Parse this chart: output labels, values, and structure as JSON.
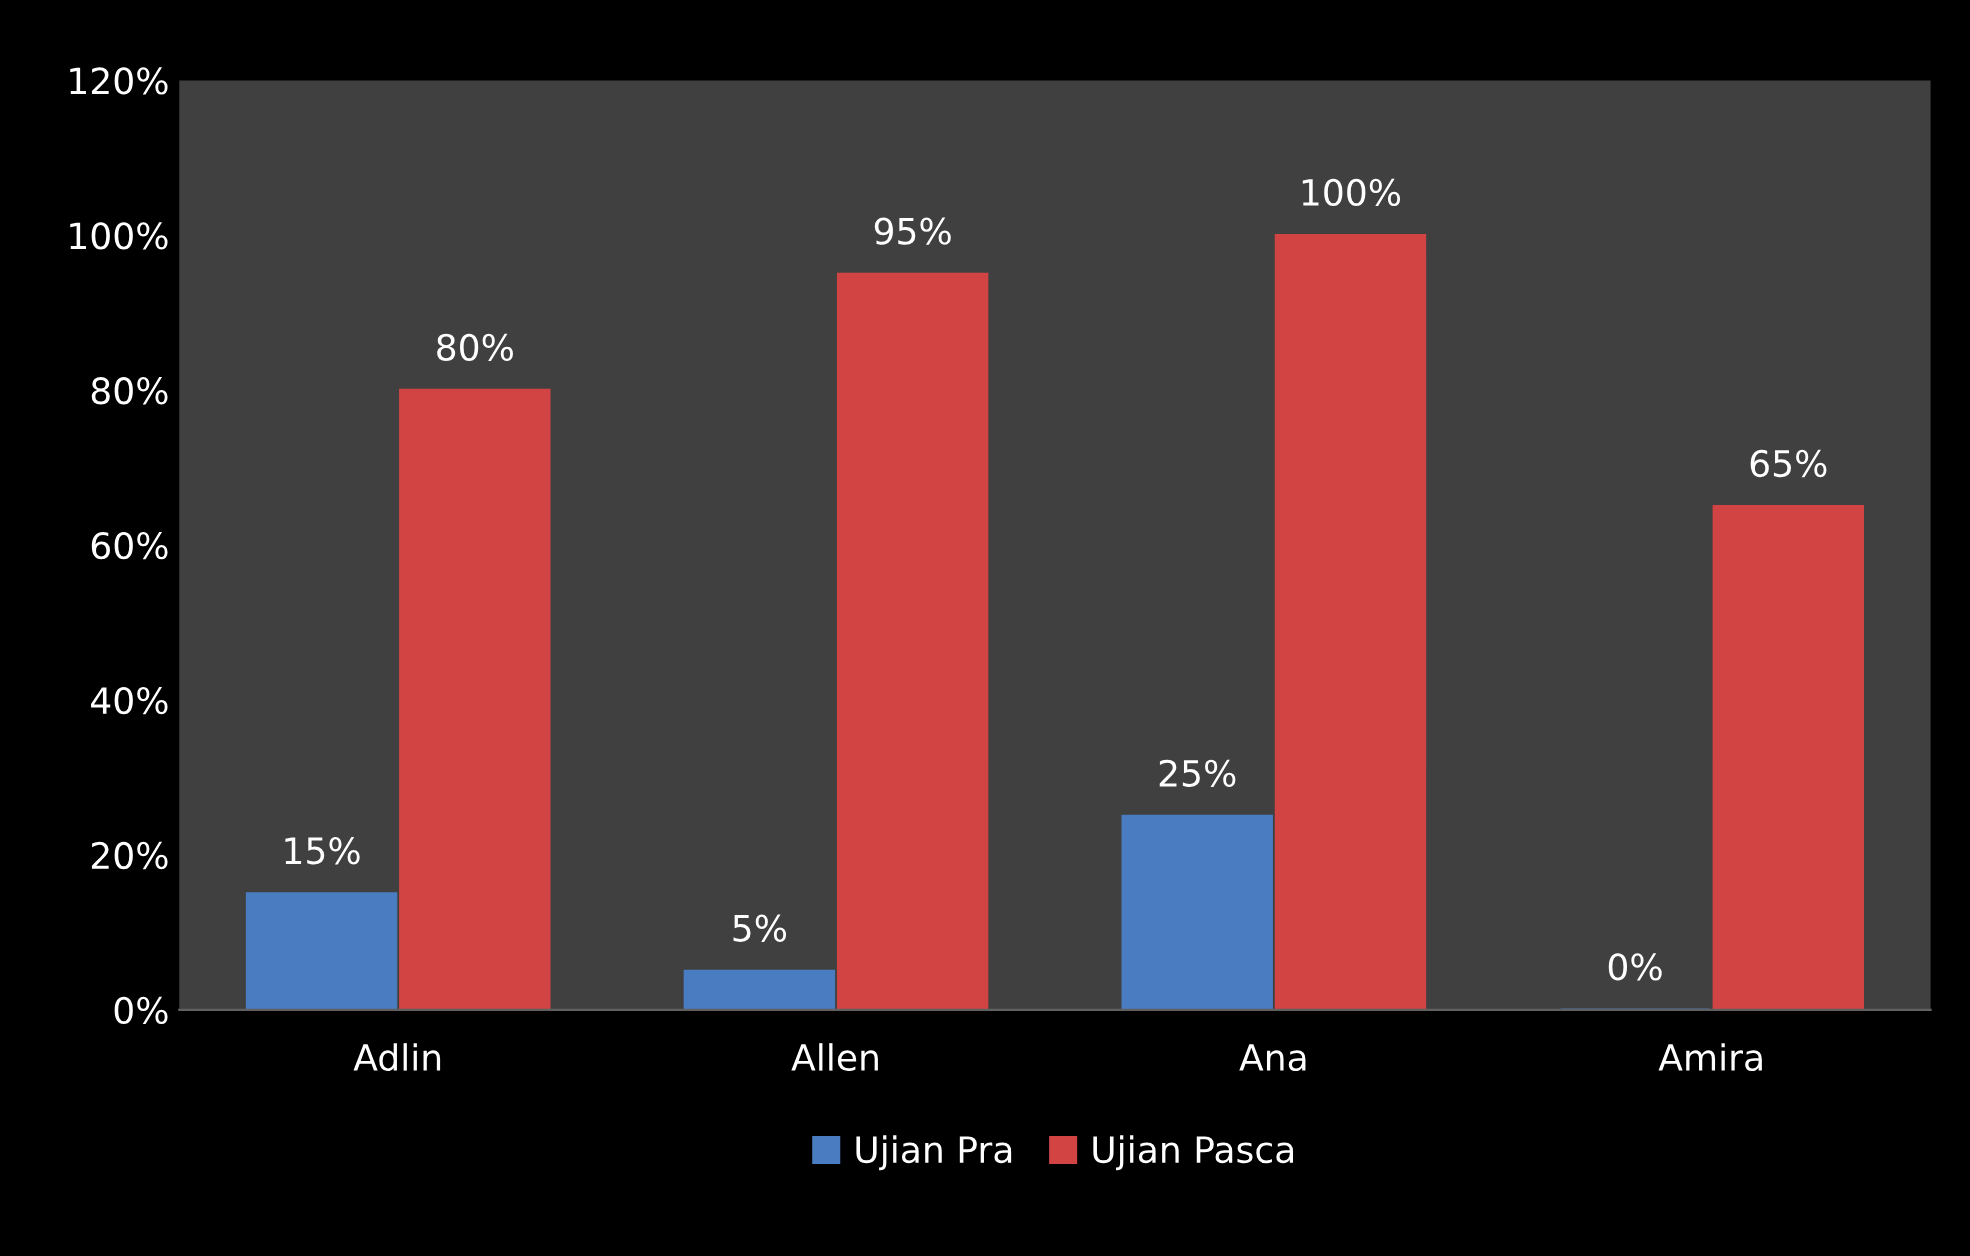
{
  "chart_data": {
    "type": "bar",
    "categories": [
      "Adlin",
      "Allen",
      "Ana",
      "Amira"
    ],
    "series": [
      {
        "name": "Ujian Pra",
        "color": "#4a7cc2",
        "values": [
          15,
          5,
          25,
          0
        ],
        "value_labels": [
          "15%",
          "5%",
          "25%",
          "0%"
        ]
      },
      {
        "name": "Ujian Pasca",
        "color": "#d24444",
        "values": [
          80,
          95,
          100,
          65
        ],
        "value_labels": [
          "80%",
          "95%",
          "100%",
          "65%"
        ]
      }
    ],
    "ylim": [
      0,
      120
    ],
    "yticks": [
      {
        "value": 0,
        "label": "0%"
      },
      {
        "value": 20,
        "label": "20%"
      },
      {
        "value": 40,
        "label": "40%"
      },
      {
        "value": 60,
        "label": "60%"
      },
      {
        "value": 80,
        "label": "80%"
      },
      {
        "value": 100,
        "label": "100%"
      },
      {
        "value": 120,
        "label": "120%"
      }
    ],
    "grid": false,
    "legend": "bottom"
  }
}
